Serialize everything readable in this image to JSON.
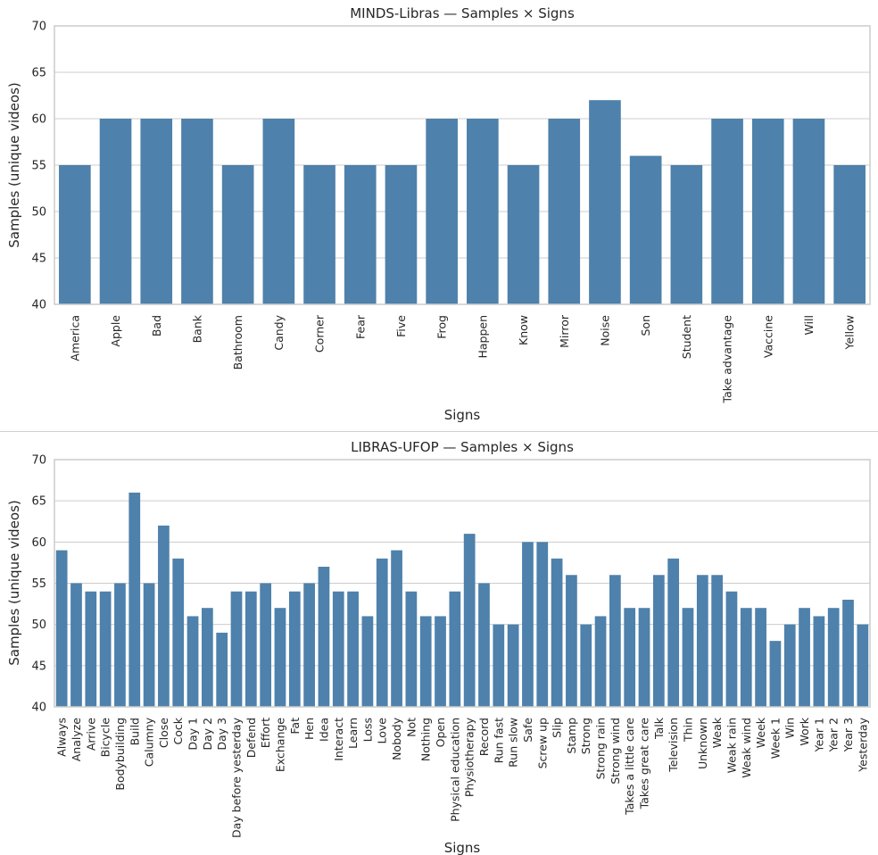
{
  "chart_data": [
    {
      "type": "bar",
      "title": "MINDS-Libras — Samples × Signs",
      "xlabel": "Signs",
      "ylabel": "Samples (unique videos)",
      "ylim": [
        40,
        70
      ],
      "yticks": [
        40,
        45,
        50,
        55,
        60,
        65,
        70
      ],
      "grid": true,
      "bar_color": "#4e81ab",
      "categories": [
        "America",
        "Apple",
        "Bad",
        "Bank",
        "Bathroom",
        "Candy",
        "Corner",
        "Fear",
        "Five",
        "Frog",
        "Happen",
        "Know",
        "Mirror",
        "Noise",
        "Son",
        "Student",
        "Take advantage",
        "Vaccine",
        "Will",
        "Yellow"
      ],
      "values": [
        55,
        60,
        60,
        60,
        55,
        60,
        55,
        55,
        55,
        60,
        60,
        55,
        60,
        62,
        56,
        55,
        60,
        60,
        60,
        55
      ]
    },
    {
      "type": "bar",
      "title": "LIBRAS-UFOP — Samples × Signs",
      "xlabel": "Signs",
      "ylabel": "Samples (unique videos)",
      "ylim": [
        40,
        70
      ],
      "yticks": [
        40,
        45,
        50,
        55,
        60,
        65,
        70
      ],
      "grid": true,
      "bar_color": "#4e81ab",
      "categories": [
        "Always",
        "Analyze",
        "Arrive",
        "Bicycle",
        "Bodybuilding",
        "Build",
        "Calumny",
        "Close",
        "Cock",
        "Day 1",
        "Day 2",
        "Day 3",
        "Day before yesterday",
        "Defend",
        "Effort",
        "Exchange",
        "Fat",
        "Hen",
        "Idea",
        "Interact",
        "Learn",
        "Loss",
        "Love",
        "Nobody",
        "Not",
        "Nothing",
        "Open",
        "Physical education",
        "Physiotherapy",
        "Record",
        "Run fast",
        "Run slow",
        "Safe",
        "Screw up",
        "Slip",
        "Stamp",
        "Strong",
        "Strong rain",
        "Strong wind",
        "Takes a little care",
        "Takes great care",
        "Talk",
        "Television",
        "Thin",
        "Unknown",
        "Weak",
        "Weak rain",
        "Weak wind",
        "Week",
        "Week 1",
        "Win",
        "Work",
        "Year 1",
        "Year 2",
        "Year 3",
        "Yesterday"
      ],
      "values": [
        59,
        55,
        54,
        54,
        55,
        66,
        55,
        62,
        58,
        51,
        52,
        49,
        54,
        54,
        55,
        52,
        54,
        55,
        57,
        54,
        54,
        51,
        58,
        59,
        54,
        51,
        51,
        54,
        61,
        55,
        50,
        50,
        60,
        60,
        58,
        56,
        50,
        51,
        56,
        52,
        52,
        56,
        58,
        52,
        56,
        56,
        54,
        52,
        52,
        48,
        50,
        52,
        51,
        52,
        53,
        50
      ]
    }
  ]
}
